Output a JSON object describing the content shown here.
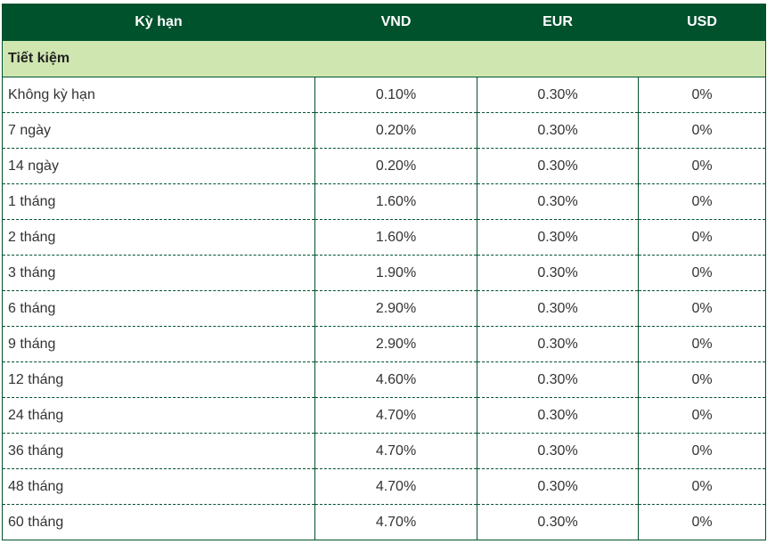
{
  "header": {
    "term": "Kỳ hạn",
    "vnd": "VND",
    "eur": "EUR",
    "usd": "USD"
  },
  "section": {
    "title": "Tiết kiệm"
  },
  "rows": [
    {
      "term": "Không kỳ hạn",
      "vnd": "0.10%",
      "eur": "0.30%",
      "usd": "0%"
    },
    {
      "term": "7 ngày",
      "vnd": "0.20%",
      "eur": "0.30%",
      "usd": "0%"
    },
    {
      "term": "14 ngày",
      "vnd": "0.20%",
      "eur": "0.30%",
      "usd": "0%"
    },
    {
      "term": "1 tháng",
      "vnd": "1.60%",
      "eur": "0.30%",
      "usd": "0%"
    },
    {
      "term": "2 tháng",
      "vnd": "1.60%",
      "eur": "0.30%",
      "usd": "0%"
    },
    {
      "term": "3 tháng",
      "vnd": "1.90%",
      "eur": "0.30%",
      "usd": "0%"
    },
    {
      "term": "6 tháng",
      "vnd": "2.90%",
      "eur": "0.30%",
      "usd": "0%"
    },
    {
      "term": "9 tháng",
      "vnd": "2.90%",
      "eur": "0.30%",
      "usd": "0%"
    },
    {
      "term": "12 tháng",
      "vnd": "4.60%",
      "eur": "0.30%",
      "usd": "0%"
    },
    {
      "term": "24 tháng",
      "vnd": "4.70%",
      "eur": "0.30%",
      "usd": "0%"
    },
    {
      "term": "36 tháng",
      "vnd": "4.70%",
      "eur": "0.30%",
      "usd": "0%"
    },
    {
      "term": "48 tháng",
      "vnd": "4.70%",
      "eur": "0.30%",
      "usd": "0%"
    },
    {
      "term": "60 tháng",
      "vnd": "4.70%",
      "eur": "0.30%",
      "usd": "0%"
    }
  ],
  "colors": {
    "header_bg": "#00522d",
    "section_bg": "#cfe6b0",
    "border": "#00522d"
  }
}
